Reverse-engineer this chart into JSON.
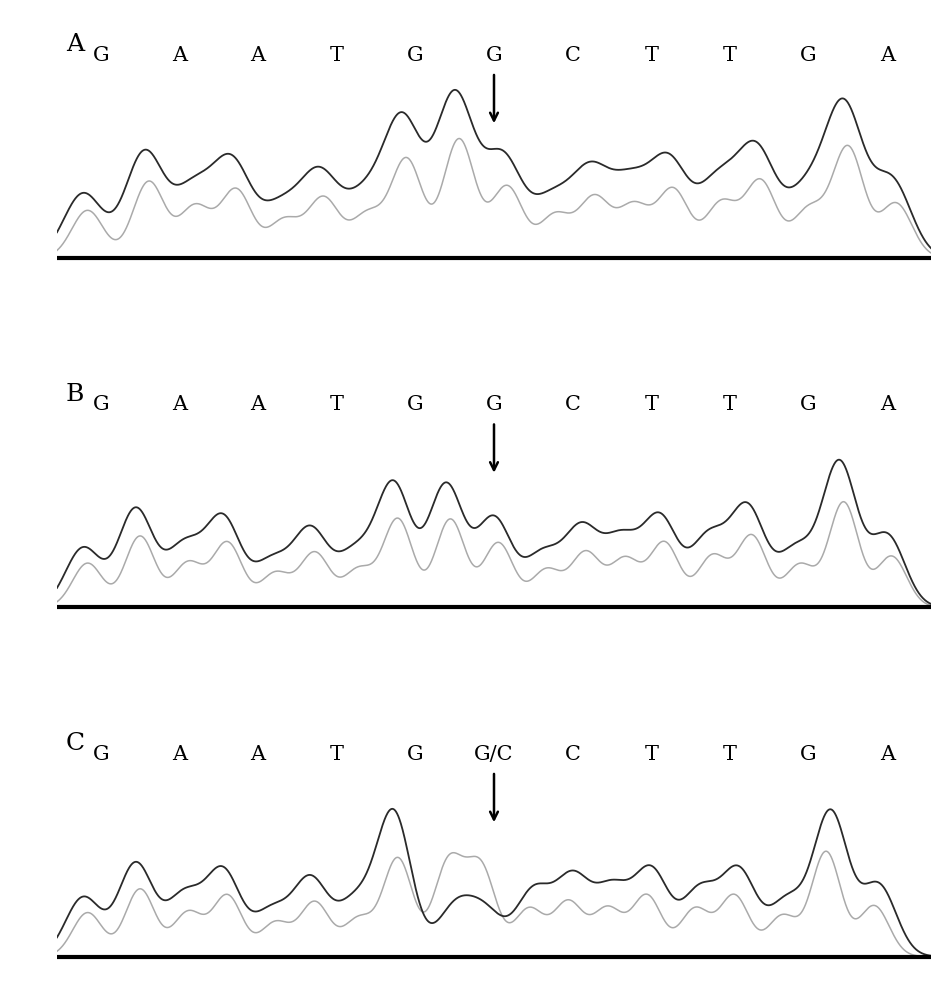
{
  "panels": [
    {
      "label": "A",
      "bases": [
        "G",
        "A",
        "A",
        "T",
        "G",
        "G",
        "C",
        "T",
        "T",
        "G",
        "A"
      ],
      "arrow_base_index": 5,
      "variant": "A"
    },
    {
      "label": "B",
      "bases": [
        "G",
        "A",
        "A",
        "T",
        "G",
        "G",
        "C",
        "T",
        "T",
        "G",
        "A"
      ],
      "arrow_base_index": 5,
      "variant": "B"
    },
    {
      "label": "C",
      "bases": [
        "G",
        "A",
        "A",
        "T",
        "G",
        "G/C",
        "C",
        "T",
        "T",
        "G",
        "A"
      ],
      "arrow_base_index": 5,
      "variant": "C"
    }
  ],
  "bg_color": "#ffffff",
  "dark_color": "#2a2a2a",
  "light_color": "#aaaaaa",
  "base_fontsize": 15,
  "label_fontsize": 18
}
